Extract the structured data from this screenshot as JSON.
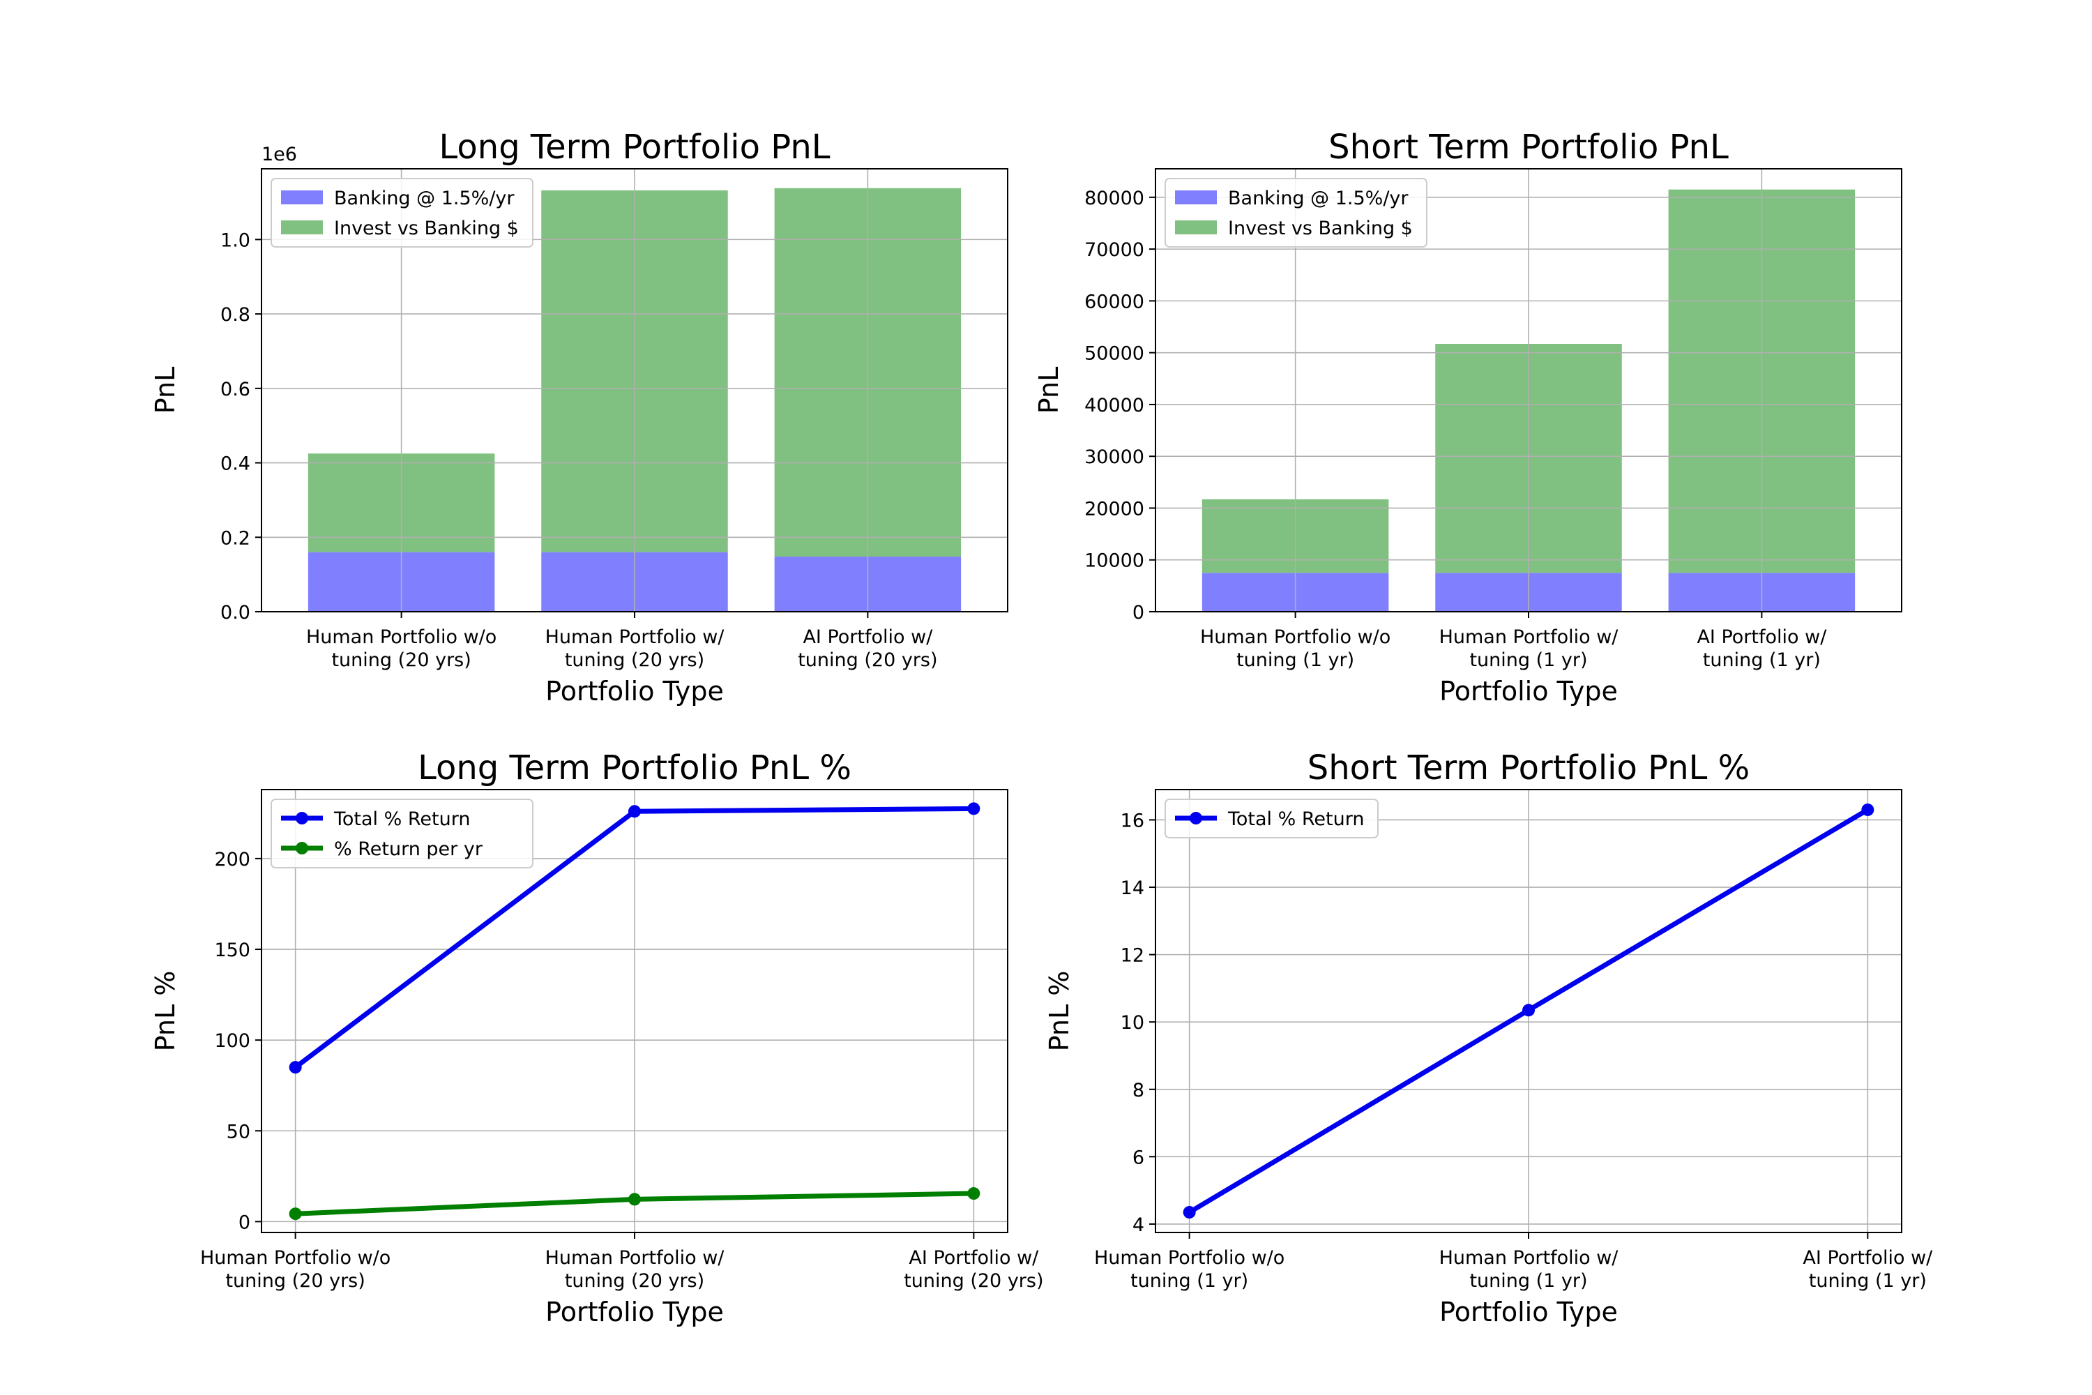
{
  "chart_data": [
    {
      "type": "bar",
      "stacked": true,
      "title": "Long Term Portfolio PnL",
      "xlabel": "Portfolio Type",
      "ylabel": "PnL",
      "y_offset_label": "1e6",
      "categories": [
        "Human Portfolio w/o\ntuning (20 yrs)",
        "Human Portfolio w/\ntuning (20 yrs)",
        "AI Portfolio w/\ntuning (20 yrs)"
      ],
      "series": [
        {
          "name": "Banking @ 1.5%/yr",
          "color": "#8080ff",
          "values": [
            160000,
            160000,
            148000
          ]
        },
        {
          "name": "Invest vs Banking $",
          "color": "#80c080",
          "values": [
            265000,
            972000,
            990000
          ]
        }
      ],
      "yticks": [
        0,
        200000,
        400000,
        600000,
        800000,
        1000000
      ],
      "ytick_labels": [
        "0.0",
        "0.2",
        "0.4",
        "0.6",
        "0.8",
        "1.0"
      ],
      "ylim": [
        0,
        1190000
      ],
      "grid": true,
      "legend": "upper-left"
    },
    {
      "type": "bar",
      "stacked": true,
      "title": "Short Term Portfolio PnL",
      "xlabel": "Portfolio Type",
      "ylabel": "PnL",
      "categories": [
        "Human Portfolio w/o\ntuning (1 yr)",
        "Human Portfolio w/\ntuning (1 yr)",
        "AI Portfolio w/\ntuning (1 yr)"
      ],
      "series": [
        {
          "name": "Banking @ 1.5%/yr",
          "color": "#8080ff",
          "values": [
            7500,
            7500,
            7500
          ]
        },
        {
          "name": "Invest vs Banking $",
          "color": "#80c080",
          "values": [
            14200,
            44200,
            74000
          ]
        }
      ],
      "yticks": [
        0,
        10000,
        20000,
        30000,
        40000,
        50000,
        60000,
        70000,
        80000
      ],
      "ytick_labels": [
        "0",
        "10000",
        "20000",
        "30000",
        "40000",
        "50000",
        "60000",
        "70000",
        "80000"
      ],
      "ylim": [
        0,
        85500
      ],
      "grid": true,
      "legend": "upper-left"
    },
    {
      "type": "line",
      "title": "Long Term Portfolio PnL %",
      "xlabel": "Portfolio Type",
      "ylabel": "PnL %",
      "categories": [
        "Human Portfolio w/o\ntuning (20 yrs)",
        "Human Portfolio w/\ntuning (20 yrs)",
        "AI Portfolio w/\ntuning (20 yrs)"
      ],
      "series": [
        {
          "name": "Total % Return",
          "color": "#0000ee",
          "values": [
            85,
            226,
            227.5
          ]
        },
        {
          "name": "% Return per yr",
          "color": "#007f00",
          "values": [
            4.3,
            12.3,
            15.5
          ]
        }
      ],
      "yticks": [
        0,
        50,
        100,
        150,
        200
      ],
      "ytick_labels": [
        "0",
        "50",
        "100",
        "150",
        "200"
      ],
      "ylim": [
        -6,
        238
      ],
      "grid": true,
      "legend": "upper-left"
    },
    {
      "type": "line",
      "title": "Short Term Portfolio PnL %",
      "xlabel": "Portfolio Type",
      "ylabel": "PnL %",
      "categories": [
        "Human Portfolio w/o\ntuning (1 yr)",
        "Human Portfolio w/\ntuning (1 yr)",
        "AI Portfolio w/\ntuning (1 yr)"
      ],
      "series": [
        {
          "name": "Total % Return",
          "color": "#0000ee",
          "values": [
            4.35,
            10.35,
            16.3
          ]
        }
      ],
      "yticks": [
        4,
        6,
        8,
        10,
        12,
        14,
        16
      ],
      "ytick_labels": [
        "4",
        "6",
        "8",
        "10",
        "12",
        "14",
        "16"
      ],
      "ylim": [
        3.75,
        16.9
      ],
      "grid": true,
      "legend": "upper-left"
    }
  ]
}
